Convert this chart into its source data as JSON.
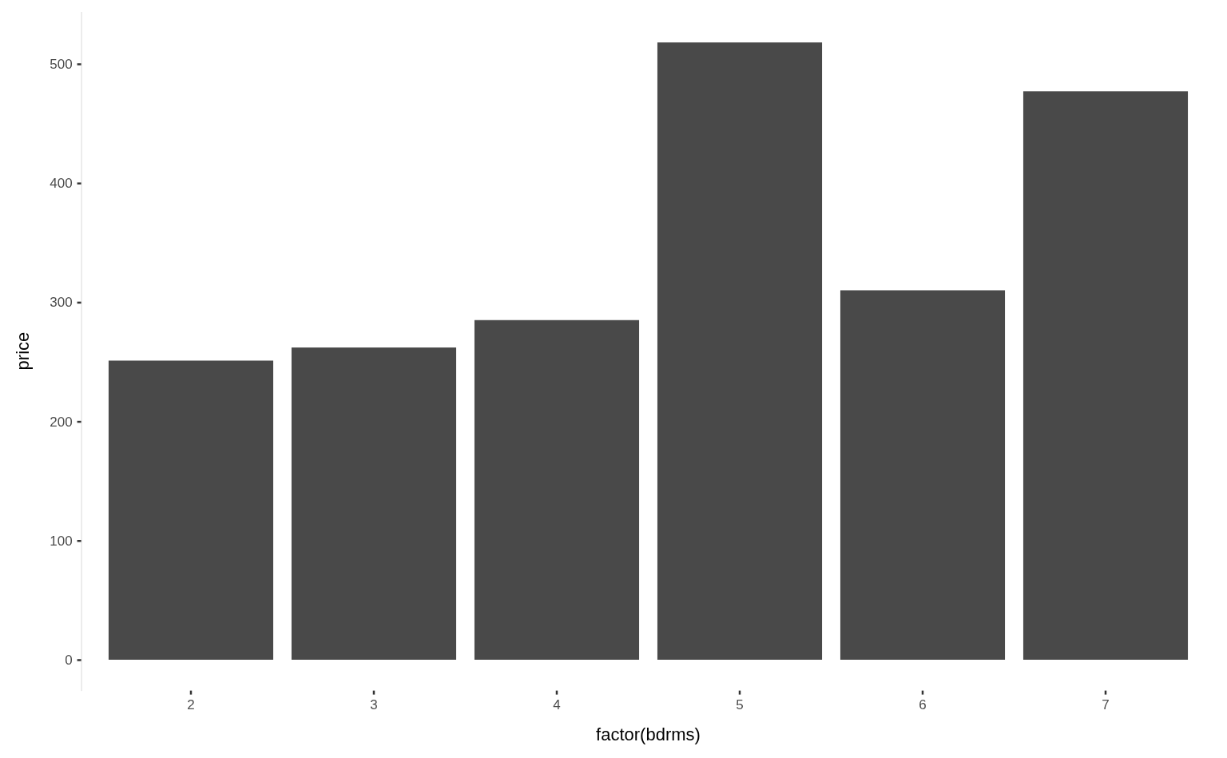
{
  "chart_data": {
    "type": "bar",
    "xlabel": "factor(bdrms)",
    "ylabel": "price",
    "categories": [
      "2",
      "3",
      "4",
      "5",
      "6",
      "7"
    ],
    "values": [
      251,
      262,
      285,
      518,
      310,
      477
    ],
    "color": "#494949",
    "ylim": [
      -25.9,
      543.9
    ],
    "yticks": [
      0,
      100,
      200,
      300,
      400,
      500
    ],
    "grid": false
  }
}
